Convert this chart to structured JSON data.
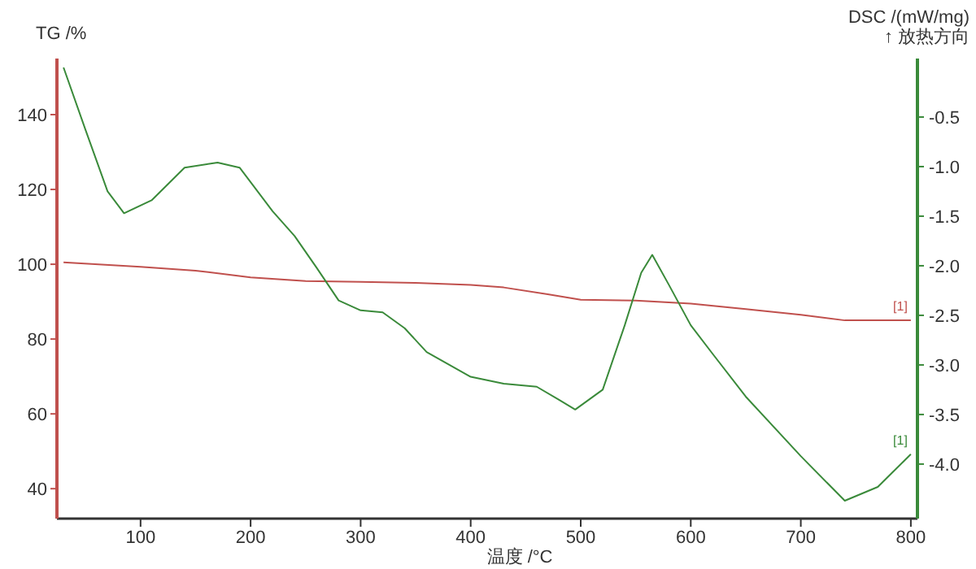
{
  "chart_data": {
    "type": "line",
    "xlabel": "温度 /°C",
    "ylabel": "TG /%",
    "y2label": "DSC /(mW/mg)\n↑ 放热方向",
    "xlim": [
      24,
      806
    ],
    "xticks": [
      100,
      200,
      300,
      400,
      500,
      600,
      700,
      800
    ],
    "ylim": [
      32,
      155
    ],
    "yticks": [
      40,
      60,
      80,
      100,
      120,
      140
    ],
    "y2lim": [
      -4.55,
      0.09
    ],
    "y2ticks": [
      -0.5,
      {
        "value": -1,
        "label": "-1.0"
      },
      -1.5,
      {
        "value": -2,
        "label": "-2.0"
      },
      -2.5,
      {
        "value": -3,
        "label": "-3.0"
      },
      -3.5,
      {
        "value": -4,
        "label": "-4.0"
      }
    ],
    "line_style": "solid",
    "annotations": [
      "[1]",
      "[1]"
    ],
    "series": [
      {
        "color": "#c0504d",
        "x": [
          30,
          100,
          150,
          200,
          250,
          300,
          350,
          400,
          430,
          470,
          500,
          550,
          600,
          650,
          700,
          740,
          800
        ],
        "values": [
          100.5,
          99.3,
          98.3,
          96.5,
          95.5,
          95.3,
          95,
          94.5,
          93.8,
          92,
          90.5,
          90.3,
          89.5,
          88,
          86.5,
          85,
          85
        ]
      },
      {
        "color": "#3a8a3a",
        "axis": "y2",
        "x": [
          30,
          50,
          70,
          85,
          110,
          140,
          170,
          190,
          220,
          240,
          260,
          280,
          300,
          320,
          340,
          360,
          400,
          430,
          460,
          480,
          495,
          520,
          540,
          555,
          565,
          580,
          600,
          620,
          650,
          700,
          740,
          770,
          800
        ],
        "values": [
          0.0,
          -0.63,
          -1.25,
          -1.47,
          -1.34,
          -1.01,
          -0.96,
          -1.01,
          -1.45,
          -1.7,
          -2.02,
          -2.35,
          -2.45,
          -2.47,
          -2.63,
          -2.87,
          -3.12,
          -3.19,
          -3.22,
          -3.35,
          -3.45,
          -3.25,
          -2.6,
          -2.07,
          -1.89,
          -2.19,
          -2.6,
          -2.89,
          -3.32,
          -3.92,
          -4.37,
          -4.23,
          -3.9
        ]
      }
    ]
  }
}
